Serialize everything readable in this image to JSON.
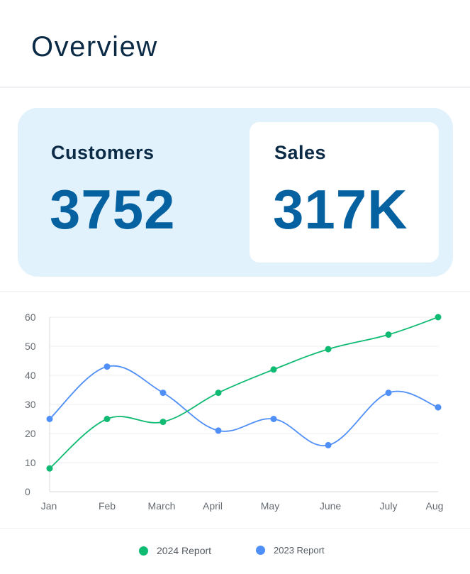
{
  "header": {
    "title": "Overview"
  },
  "stats": {
    "customers": {
      "label": "Customers",
      "value": "3752"
    },
    "sales": {
      "label": "Sales",
      "value": "317K"
    }
  },
  "colors": {
    "series_2024": "#0fba73",
    "series_2023": "#4f8ff7",
    "panel_bg": "#e1f2fd",
    "value_text": "#0561a0",
    "title_text": "#0b2a45"
  },
  "chart_data": {
    "type": "line",
    "categories": [
      "Jan",
      "Feb",
      "March",
      "April",
      "May",
      "June",
      "July",
      "Aug"
    ],
    "series": [
      {
        "name": "2024 Report",
        "values": [
          8,
          25,
          24,
          34,
          42,
          49,
          54,
          60
        ]
      },
      {
        "name": "2023 Report",
        "values": [
          25,
          43,
          34,
          21,
          25,
          16,
          34,
          29
        ]
      }
    ],
    "ylim": [
      0,
      60
    ],
    "yticks": [
      0,
      10,
      20,
      30,
      40,
      50,
      60
    ],
    "grid": true,
    "legend": "bottom-center",
    "title": "",
    "xlabel": "",
    "ylabel": ""
  }
}
